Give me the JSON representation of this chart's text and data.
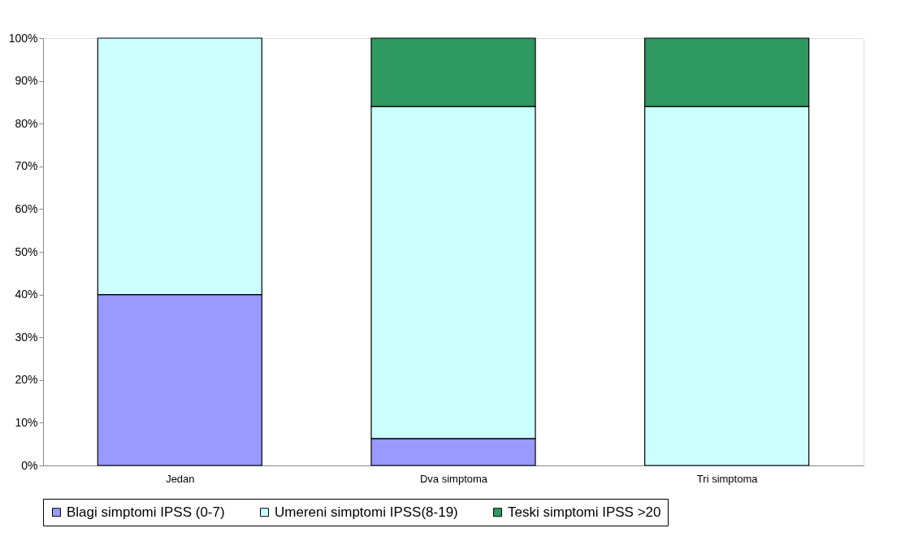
{
  "chart_data": {
    "type": "bar",
    "stacked": true,
    "categories": [
      "Jedan",
      "Dva simptoma",
      "Tri simptoma"
    ],
    "series": [
      {
        "name": "Blagi simptomi IPSS (0-7)",
        "color": "#9999ff",
        "values": [
          40,
          6.3,
          0
        ]
      },
      {
        "name": "Umereni simptomi IPSS(8-19)",
        "color": "#ccffff",
        "values": [
          60,
          77.7,
          84
        ]
      },
      {
        "name": "Teski simptomi IPSS >20",
        "color": "#2e9960",
        "values": [
          0,
          16,
          16
        ]
      }
    ],
    "ylim": [
      0,
      100
    ],
    "yticks": [
      {
        "value": 0,
        "label": "0%"
      },
      {
        "value": 10,
        "label": "10%"
      },
      {
        "value": 20,
        "label": "20%"
      },
      {
        "value": 30,
        "label": "30%"
      },
      {
        "value": 40,
        "label": "40%"
      },
      {
        "value": 50,
        "label": "50%"
      },
      {
        "value": 60,
        "label": "60%"
      },
      {
        "value": 70,
        "label": "70%"
      },
      {
        "value": 80,
        "label": "80%"
      },
      {
        "value": 90,
        "label": "90%"
      },
      {
        "value": 100,
        "label": "100%"
      }
    ],
    "grid": false,
    "legend": "bottom"
  }
}
